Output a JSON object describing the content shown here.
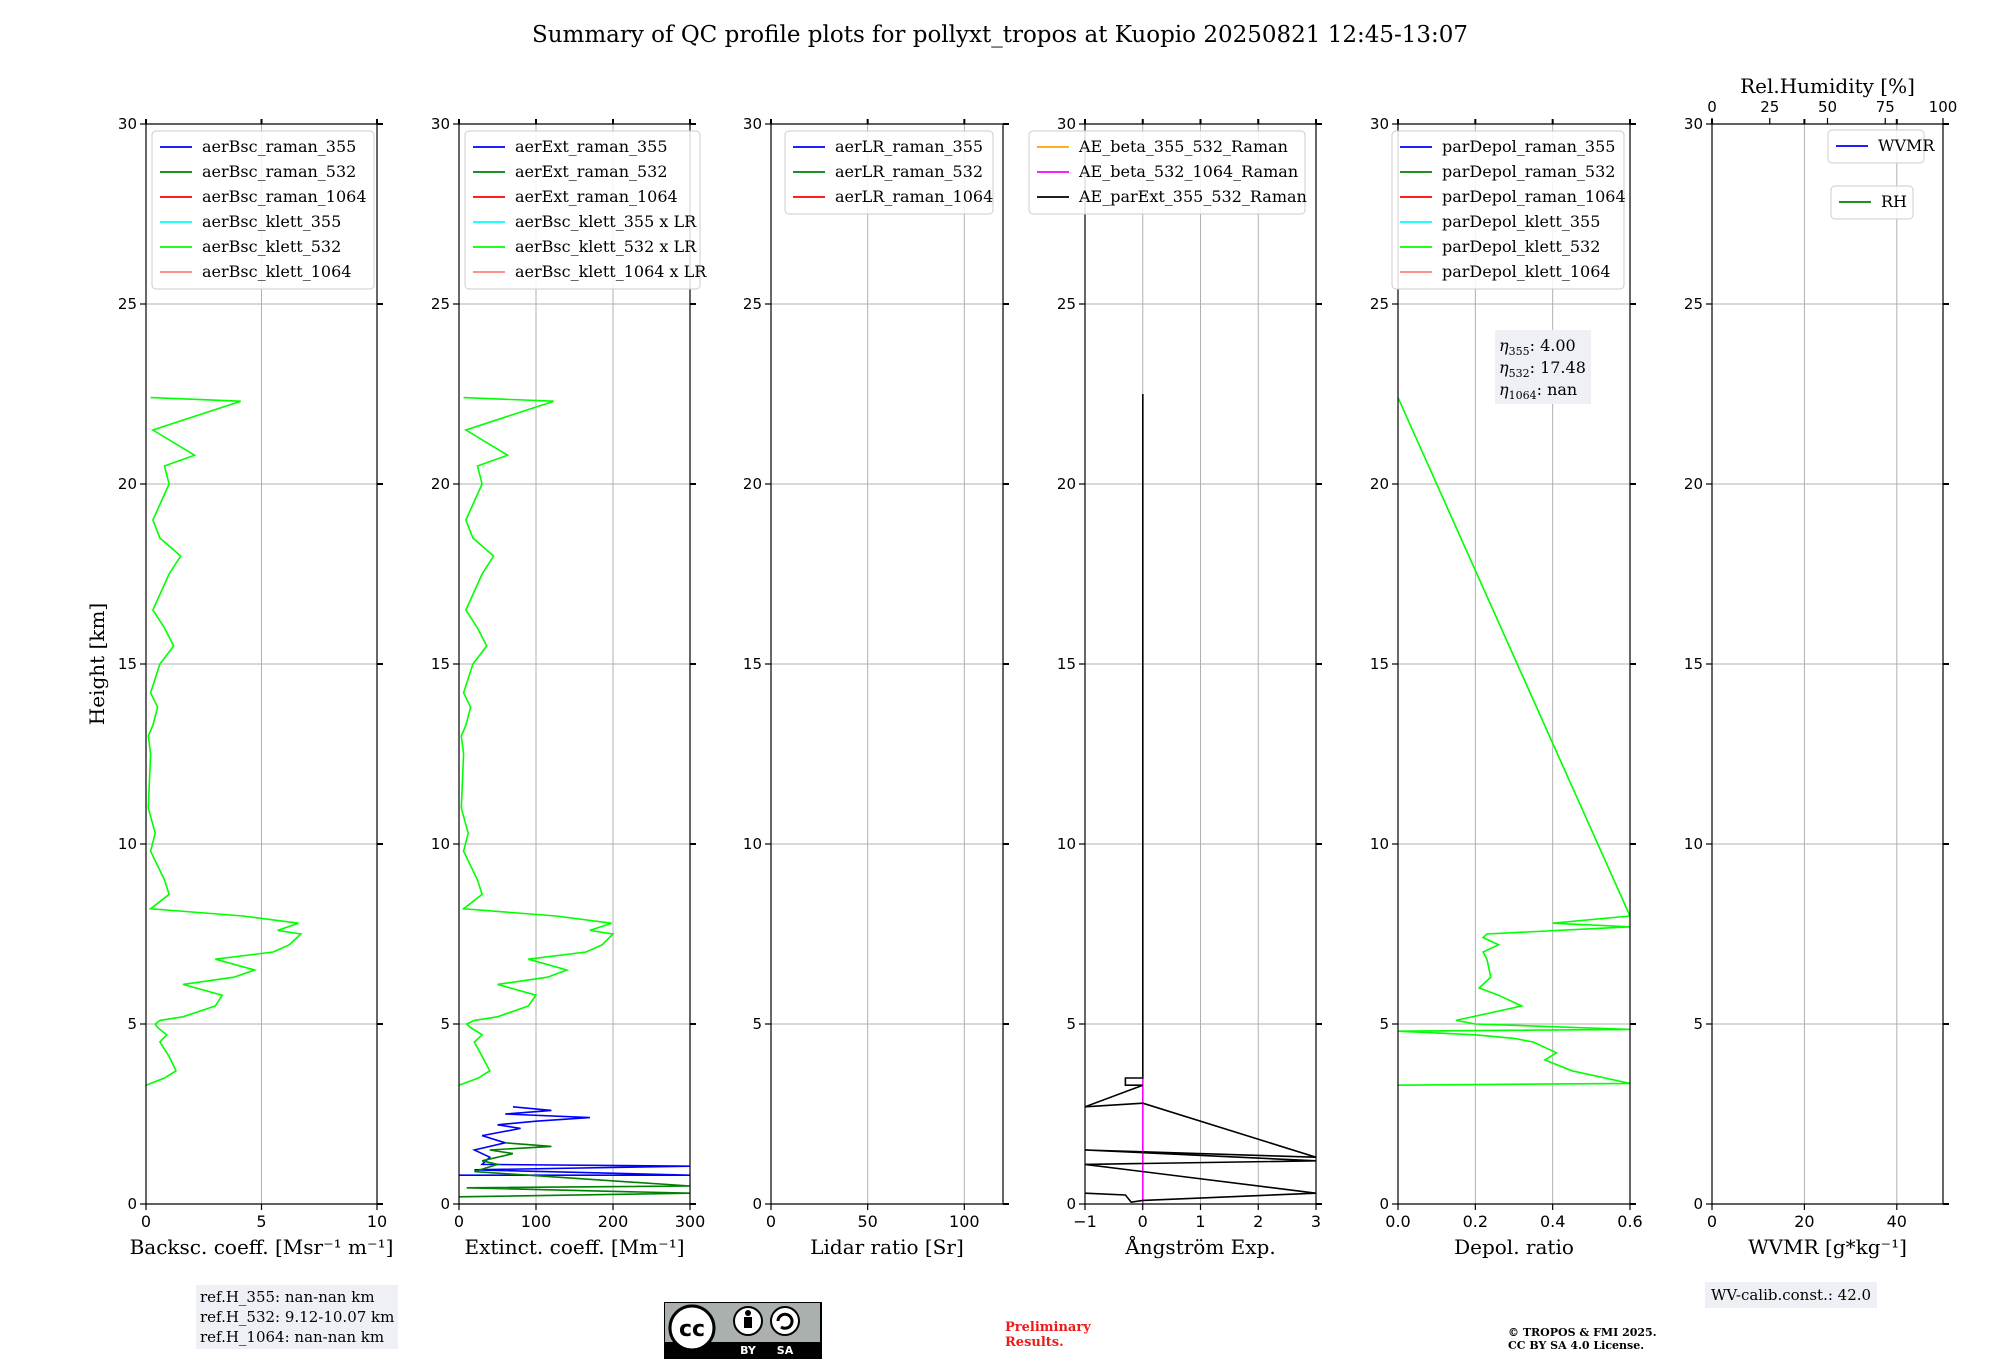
{
  "title": "Summary of QC profile plots for pollyxt_tropos at Kuopio 20250821 12:45-13:07",
  "ylabel": "Height [km]",
  "panels": [
    {
      "xlabel": "Backsc. coeff. [Msr⁻¹ m⁻¹]",
      "xlim": [
        0,
        10
      ],
      "xticks": [
        0,
        5,
        10
      ],
      "legend": [
        {
          "label": "aerBsc_raman_355",
          "color": "#0000ff"
        },
        {
          "label": "aerBsc_raman_532",
          "color": "#008000"
        },
        {
          "label": "aerBsc_raman_1064",
          "color": "#ff0000"
        },
        {
          "label": "aerBsc_klett_355",
          "color": "#00ffff"
        },
        {
          "label": "aerBsc_klett_532",
          "color": "#00ff00"
        },
        {
          "label": "aerBsc_klett_1064",
          "color": "#ff8080"
        }
      ]
    },
    {
      "xlabel": "Extinct. coeff. [Mm⁻¹]",
      "xlim": [
        0,
        300
      ],
      "xticks": [
        0,
        100,
        200,
        300
      ],
      "legend": [
        {
          "label": "aerExt_raman_355",
          "color": "#0000ff"
        },
        {
          "label": "aerExt_raman_532",
          "color": "#008000"
        },
        {
          "label": "aerExt_raman_1064",
          "color": "#ff0000"
        },
        {
          "label": "aerBsc_klett_355 x LR",
          "color": "#00ffff"
        },
        {
          "label": "aerBsc_klett_532 x LR",
          "color": "#00ff00"
        },
        {
          "label": "aerBsc_klett_1064 x LR",
          "color": "#ff8080"
        }
      ]
    },
    {
      "xlabel": "Lidar ratio [Sr]",
      "xlim": [
        0,
        120
      ],
      "xticks": [
        0,
        50,
        100
      ],
      "legend": [
        {
          "label": "aerLR_raman_355",
          "color": "#0000ff"
        },
        {
          "label": "aerLR_raman_532",
          "color": "#008000"
        },
        {
          "label": "aerLR_raman_1064",
          "color": "#ff0000"
        }
      ]
    },
    {
      "xlabel": "Ångström Exp.",
      "xlim": [
        -1,
        3
      ],
      "xticks": [
        -1,
        0,
        1,
        2,
        3
      ],
      "xticklabels": [
        "−1",
        "0",
        "1",
        "2",
        "3"
      ],
      "legend": [
        {
          "label": "AE_beta_355_532_Raman",
          "color": "#ffa500"
        },
        {
          "label": "AE_beta_532_1064_Raman",
          "color": "#ff00ff"
        },
        {
          "label": "AE_parExt_355_532_Raman",
          "color": "#000000"
        }
      ]
    },
    {
      "xlabel": "Depol. ratio",
      "xlim": [
        0,
        0.6
      ],
      "xticks": [
        0,
        0.2,
        0.4,
        0.6
      ],
      "xticklabels": [
        "0.0",
        "0.2",
        "0.4",
        "0.6"
      ],
      "legend": [
        {
          "label": "parDepol_raman_355",
          "color": "#0000ff"
        },
        {
          "label": "parDepol_raman_532",
          "color": "#008000"
        },
        {
          "label": "parDepol_raman_1064",
          "color": "#ff0000"
        },
        {
          "label": "parDepol_klett_355",
          "color": "#00ffff"
        },
        {
          "label": "parDepol_klett_532",
          "color": "#00ff00"
        },
        {
          "label": "parDepol_klett_1064",
          "color": "#ff8080"
        }
      ],
      "eta": [
        "4.00",
        "17.48",
        "nan"
      ]
    },
    {
      "xlabel": "WVMR [g*kg⁻¹]",
      "xlim": [
        0,
        50
      ],
      "xticks": [
        0,
        20,
        40
      ],
      "toplabel": "Rel.Humidity [%]",
      "topticks": [
        "0",
        "25",
        "50",
        "75",
        "100"
      ],
      "legend": [
        {
          "label": "WVMR",
          "color": "#0000ff"
        }
      ],
      "legend2": [
        {
          "label": "RH",
          "color": "#008000"
        }
      ]
    }
  ],
  "yticks": [
    "0",
    "5",
    "10",
    "15",
    "20",
    "25",
    "30"
  ],
  "chart_data": [
    {
      "type": "line",
      "name": "aerBsc_klett_532",
      "xlabel": "Backsc. coeff. [Msr⁻¹ m⁻¹]",
      "ylabel": "Height [km]",
      "ylim": [
        0,
        30
      ],
      "xlim": [
        0,
        10
      ],
      "grid": true,
      "legend": "top",
      "series": [
        {
          "name": "aerBsc_klett_532",
          "x": [
            0,
            0.8,
            1.3,
            1.0,
            0.6,
            0.9,
            0.5,
            0.4,
            0.6,
            1.6,
            3.0,
            3.3,
            1.6,
            3.8,
            4.7,
            3.0,
            5.5,
            6.2,
            6.7,
            5.7,
            6.6,
            4.2,
            0.2,
            1.0,
            0.8,
            0.2,
            0.4,
            0.1,
            0.2,
            0.1,
            0.3,
            0.5,
            0.2,
            0.6,
            1.2,
            0.8,
            0.3,
            1.0,
            1.5,
            0.6,
            0.3,
            1.0,
            0.8,
            2.1,
            0.3,
            4.1,
            0.2
          ],
          "y": [
            3.3,
            3.5,
            3.7,
            4.1,
            4.5,
            4.7,
            4.9,
            5.0,
            5.1,
            5.2,
            5.5,
            5.8,
            6.1,
            6.3,
            6.5,
            6.8,
            7.0,
            7.2,
            7.5,
            7.6,
            7.8,
            8.0,
            8.2,
            8.6,
            9.0,
            9.8,
            10.3,
            11.0,
            12.5,
            13.0,
            13.3,
            13.8,
            14.2,
            15.0,
            15.5,
            16.0,
            16.5,
            17.5,
            18.0,
            18.5,
            19.0,
            20.0,
            20.5,
            20.8,
            21.5,
            22.3,
            22.4
          ]
        }
      ]
    },
    {
      "type": "line",
      "xlabel": "Extinct. coeff. [Mm⁻¹]",
      "ylabel": "Height [km]",
      "ylim": [
        0,
        30
      ],
      "xlim": [
        0,
        300
      ],
      "grid": true,
      "series": [
        {
          "name": "aerBsc_klett_532 x LR",
          "x": [
            0,
            25,
            40,
            30,
            20,
            30,
            15,
            10,
            20,
            50,
            90,
            100,
            50,
            115,
            140,
            90,
            165,
            186,
            200,
            170,
            198,
            126,
            6,
            30,
            24,
            6,
            12,
            3,
            6,
            3,
            9,
            15,
            6,
            18,
            36,
            24,
            9,
            30,
            45,
            18,
            9,
            30,
            24,
            63,
            9,
            123,
            6
          ],
          "y": [
            3.3,
            3.5,
            3.7,
            4.1,
            4.5,
            4.7,
            4.9,
            5.0,
            5.1,
            5.2,
            5.5,
            5.8,
            6.1,
            6.3,
            6.5,
            6.8,
            7.0,
            7.2,
            7.5,
            7.6,
            7.8,
            8.0,
            8.2,
            8.6,
            9.0,
            9.8,
            10.3,
            11.0,
            12.5,
            13.0,
            13.3,
            13.8,
            14.2,
            15.0,
            15.5,
            16.0,
            16.5,
            17.5,
            18.0,
            18.5,
            19.0,
            20.0,
            20.5,
            20.8,
            21.5,
            22.3,
            22.4
          ]
        },
        {
          "name": "aerExt_raman_355",
          "x": [
            0,
            300,
            20,
            300,
            30,
            40,
            20,
            60,
            30,
            80,
            50,
            100,
            170,
            60,
            120,
            70
          ],
          "y": [
            0.8,
            0.8,
            0.95,
            1.05,
            1.1,
            1.3,
            1.5,
            1.7,
            1.9,
            2.1,
            2.2,
            2.3,
            2.4,
            2.5,
            2.6,
            2.7
          ]
        },
        {
          "name": "aerExt_raman_532",
          "x": [
            0,
            300,
            10,
            300,
            20,
            50,
            30,
            70,
            40,
            120,
            60
          ],
          "y": [
            0.2,
            0.3,
            0.45,
            0.5,
            0.9,
            1.1,
            1.2,
            1.4,
            1.5,
            1.6,
            1.7
          ]
        }
      ]
    },
    {
      "type": "line",
      "xlabel": "Lidar ratio [Sr]",
      "ylabel": "Height [km]",
      "ylim": [
        0,
        30
      ],
      "xlim": [
        0,
        120
      ],
      "grid": true,
      "series": []
    },
    {
      "type": "line",
      "xlabel": "Ångström Exp.",
      "ylabel": "Height [km]",
      "ylim": [
        0,
        30
      ],
      "xlim": [
        -1,
        3
      ],
      "grid": true,
      "series": [
        {
          "name": "AE_beta_532_1064_Raman",
          "x": [
            0,
            0
          ],
          "y": [
            0,
            3.5
          ]
        },
        {
          "name": "AE_parExt_355_532_Raman",
          "x": [
            -1,
            -0.3,
            -0.2,
            0,
            3,
            -1,
            3,
            -1,
            3,
            0,
            -1,
            0,
            -0.3,
            -0.3,
            0,
            0,
            0
          ],
          "y": [
            0.3,
            0.25,
            0.05,
            0.1,
            0.3,
            1.1,
            1.2,
            1.5,
            1.3,
            2.8,
            2.7,
            3.3,
            3.3,
            3.5,
            3.5,
            3.6,
            22.5
          ]
        }
      ]
    },
    {
      "type": "line",
      "xlabel": "Depol. ratio",
      "ylabel": "Height [km]",
      "ylim": [
        0,
        30
      ],
      "xlim": [
        0,
        0.6
      ],
      "grid": true,
      "series": [
        {
          "name": "parDepol_klett_532",
          "x": [
            0,
            0.6,
            0.45,
            0.38,
            0.41,
            0.35,
            0.3,
            0.2,
            0.0,
            0.6,
            0.2,
            0.15,
            0.32,
            0.26,
            0.21,
            0.24,
            0.23,
            0.22,
            0.26,
            0.22,
            0.23,
            0.6,
            0.4,
            0.6,
            0.0
          ],
          "y": [
            3.3,
            3.35,
            3.7,
            4.0,
            4.2,
            4.5,
            4.6,
            4.7,
            4.8,
            4.85,
            5.0,
            5.1,
            5.5,
            5.8,
            6.0,
            6.3,
            6.8,
            7.0,
            7.2,
            7.4,
            7.5,
            7.7,
            7.8,
            8.0,
            22.4
          ]
        }
      ],
      "annotation": [
        "η₃₅₅: 4.00",
        "η₅₃₂: 17.48",
        "η₁₀₆₄: nan"
      ]
    },
    {
      "type": "line",
      "xlabel": "WVMR [g*kg⁻¹]",
      "ylabel": "Height [km]",
      "ylim": [
        0,
        30
      ],
      "xlim": [
        0,
        50
      ],
      "grid": true,
      "series": []
    }
  ],
  "refH": [
    "ref.H_355: nan-nan km",
    "ref.H_532: 9.12-10.07 km",
    "ref.H_1064: nan-nan km"
  ],
  "wvcalib": "WV-calib.const.: 42.0",
  "prelim": [
    "Preliminary",
    "Results."
  ],
  "copyright": [
    "© TROPOS & FMI 2025.",
    "CC BY SA 4.0 License."
  ],
  "cc_badge": {
    "main": "cc",
    "by": "BY",
    "sa": "SA"
  },
  "colors": {
    "grid": "#b0b0b0",
    "klett532": "#00ff00",
    "raman355": "#0000ff",
    "raman532": "#008000",
    "ae": "#000000",
    "magenta": "#ff00ff",
    "prelim": "#ee1a1a"
  }
}
